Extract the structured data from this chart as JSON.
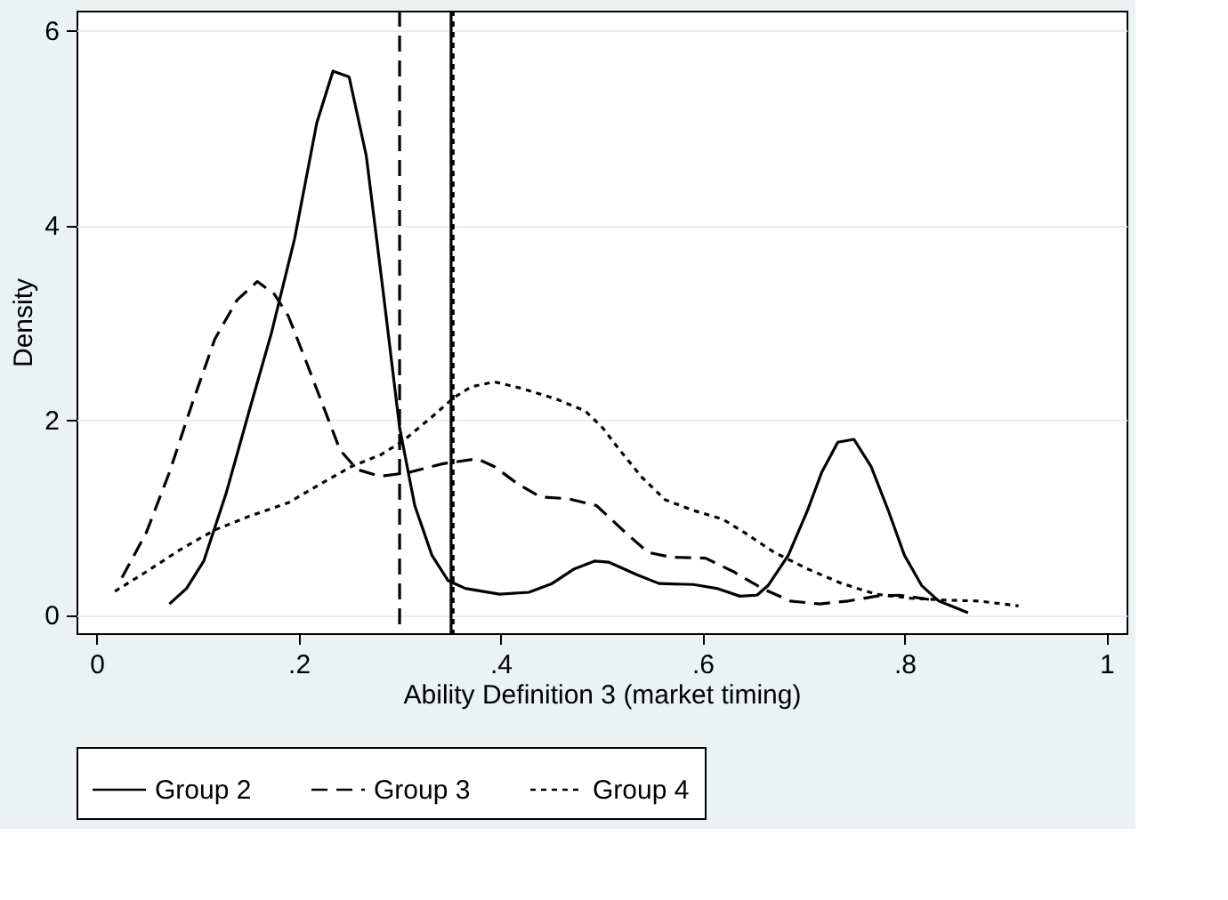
{
  "chart_data": {
    "type": "line",
    "xlabel": "Ability Definition 3 (market timing)",
    "ylabel": "Density",
    "xlim": [
      -0.02,
      1.02
    ],
    "ylim": [
      -0.19,
      6.2
    ],
    "xticks": [
      0,
      {
        "value": 0.2,
        "label": ".2"
      },
      {
        "value": 0.4,
        "label": ".4"
      },
      {
        "value": 0.6,
        "label": ".6"
      },
      {
        "value": 0.8,
        "label": ".8"
      },
      1
    ],
    "yticks": [
      0,
      2,
      4,
      6
    ],
    "grid": "y",
    "legend": "bottom",
    "series": [
      {
        "name": "Group 2",
        "color": "#000000",
        "line_style": "solid",
        "x": [
          0.072,
          0.089,
          0.106,
          0.128,
          0.151,
          0.173,
          0.196,
          0.218,
          0.234,
          0.25,
          0.267,
          0.284,
          0.3,
          0.315,
          0.332,
          0.348,
          0.365,
          0.399,
          0.428,
          0.451,
          0.473,
          0.493,
          0.507,
          0.535,
          0.557,
          0.591,
          0.614,
          0.637,
          0.654,
          0.665,
          0.685,
          0.704,
          0.718,
          0.734,
          0.75,
          0.767,
          0.784,
          0.8,
          0.817,
          0.834,
          0.863
        ],
        "values": [
          0.11,
          0.27,
          0.55,
          1.24,
          2.09,
          2.89,
          3.86,
          5.05,
          5.58,
          5.52,
          4.71,
          3.29,
          1.92,
          1.12,
          0.61,
          0.35,
          0.27,
          0.21,
          0.23,
          0.32,
          0.47,
          0.55,
          0.54,
          0.41,
          0.32,
          0.31,
          0.27,
          0.19,
          0.2,
          0.3,
          0.61,
          1.07,
          1.46,
          1.77,
          1.8,
          1.52,
          1.07,
          0.61,
          0.3,
          0.14,
          0.02
        ]
      },
      {
        "name": "Group 3",
        "color": "#000000",
        "line_style": "dashed",
        "x": [
          0.025,
          0.049,
          0.072,
          0.094,
          0.117,
          0.139,
          0.159,
          0.176,
          0.19,
          0.207,
          0.224,
          0.241,
          0.258,
          0.281,
          0.309,
          0.343,
          0.377,
          0.394,
          0.416,
          0.439,
          0.467,
          0.495,
          0.524,
          0.546,
          0.569,
          0.603,
          0.631,
          0.659,
          0.687,
          0.716,
          0.744,
          0.772,
          0.795,
          0.829
        ],
        "values": [
          0.38,
          0.84,
          1.46,
          2.15,
          2.83,
          3.23,
          3.42,
          3.29,
          3.06,
          2.61,
          2.15,
          1.69,
          1.49,
          1.42,
          1.46,
          1.55,
          1.6,
          1.52,
          1.35,
          1.21,
          1.19,
          1.12,
          0.84,
          0.64,
          0.59,
          0.58,
          0.44,
          0.27,
          0.14,
          0.11,
          0.14,
          0.19,
          0.2,
          0.15
        ]
      },
      {
        "name": "Group 4",
        "color": "#000000",
        "line_style": "dotted",
        "x": [
          0.018,
          0.049,
          0.083,
          0.117,
          0.151,
          0.19,
          0.218,
          0.252,
          0.281,
          0.303,
          0.332,
          0.354,
          0.371,
          0.394,
          0.422,
          0.456,
          0.484,
          0.501,
          0.518,
          0.54,
          0.563,
          0.591,
          0.62,
          0.642,
          0.671,
          0.704,
          0.738,
          0.772,
          0.806,
          0.84,
          0.874,
          0.913
        ],
        "values": [
          0.24,
          0.44,
          0.67,
          0.87,
          1.01,
          1.15,
          1.32,
          1.52,
          1.64,
          1.78,
          2.03,
          2.23,
          2.34,
          2.39,
          2.32,
          2.21,
          2.09,
          1.92,
          1.69,
          1.41,
          1.18,
          1.07,
          0.98,
          0.84,
          0.64,
          0.47,
          0.32,
          0.21,
          0.17,
          0.15,
          0.14,
          0.09
        ]
      }
    ],
    "ref_lines": [
      {
        "axis": "x",
        "value": 0.3,
        "color": "#000000",
        "line_style": "dashed"
      },
      {
        "axis": "x",
        "value": 0.351,
        "color": "#000000",
        "line_style": "solid"
      },
      {
        "axis": "x",
        "value": 0.353,
        "color": "#000000",
        "line_style": "dotted"
      }
    ]
  }
}
